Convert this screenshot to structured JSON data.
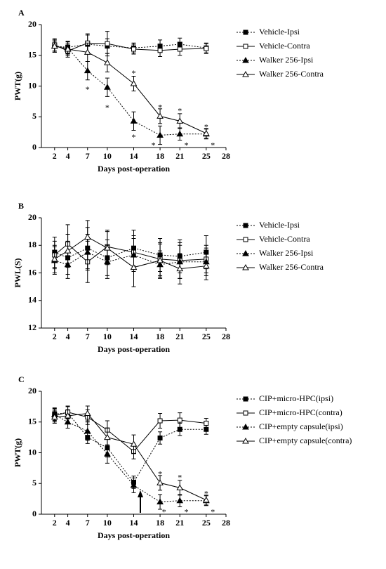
{
  "chart_data": [
    {
      "type": "line",
      "label": "A",
      "ylabel": "PWT(g)",
      "xlabel": "Days post-operation",
      "xlim": [
        0,
        28
      ],
      "xticks": [
        2,
        4,
        7,
        10,
        14,
        18,
        21,
        25,
        28
      ],
      "ylim": [
        0,
        20
      ],
      "yticks": [
        0,
        5,
        10,
        15,
        20
      ],
      "x": [
        2,
        4,
        7,
        10,
        14,
        18,
        21,
        25
      ],
      "series": [
        {
          "name": "Vehicle-Ipsi",
          "color": "#000000",
          "line_style": "dotted",
          "marker": "square",
          "filled": true,
          "values": [
            16.5,
            16.3,
            16.8,
            16.5,
            16.2,
            16.5,
            16.8,
            16.2
          ],
          "errors": [
            0.8,
            1.0,
            1.5,
            1.2,
            0.8,
            1.0,
            1.0,
            0.8
          ]
        },
        {
          "name": "Vehicle-Contra",
          "color": "#000000",
          "line_style": "solid",
          "marker": "square",
          "filled": false,
          "values": [
            16.7,
            15.7,
            17.0,
            16.9,
            16.0,
            15.8,
            16.0,
            16.1
          ],
          "errors": [
            1.0,
            1.0,
            1.5,
            2.0,
            0.8,
            1.0,
            1.0,
            0.8
          ]
        },
        {
          "name": "Walker 256-Ipsi",
          "color": "#000000",
          "line_style": "dotted",
          "marker": "triangle",
          "filled": true,
          "values": [
            16.5,
            16.2,
            12.5,
            9.8,
            4.3,
            2.0,
            2.2,
            2.2
          ],
          "errors": [
            1.0,
            1.0,
            1.5,
            1.5,
            1.5,
            1.5,
            1.0,
            0.8
          ]
        },
        {
          "name": "Walker 256-Contra",
          "color": "#000000",
          "line_style": "solid",
          "marker": "triangle",
          "filled": false,
          "values": [
            16.5,
            16.0,
            15.5,
            13.8,
            10.4,
            5.1,
            4.3,
            2.3
          ],
          "errors": [
            1.0,
            1.0,
            1.5,
            1.5,
            1.2,
            1.2,
            1.2,
            0.8
          ]
        }
      ],
      "annotations": [
        {
          "text": "*",
          "x": 7,
          "y": 9.7
        },
        {
          "text": "*",
          "x": 10,
          "y": 6.7
        },
        {
          "text": "*",
          "x": 14,
          "y": 12.3
        },
        {
          "text": "*",
          "x": 14,
          "y": 1.9
        },
        {
          "text": "*",
          "x": 18,
          "y": 6.8
        },
        {
          "text": "*",
          "x": 17,
          "y": 0.6
        },
        {
          "text": "*",
          "x": 21,
          "y": 6.2
        },
        {
          "text": "*",
          "x": 22,
          "y": 0.6
        },
        {
          "text": "*",
          "x": 25,
          "y": 3.6
        },
        {
          "text": "*",
          "x": 26,
          "y": 0.6
        }
      ]
    },
    {
      "type": "line",
      "label": "B",
      "ylabel": "PWL(S)",
      "xlabel": "Days post-operation",
      "xlim": [
        0,
        28
      ],
      "xticks": [
        2,
        4,
        7,
        10,
        14,
        18,
        21,
        25,
        28
      ],
      "ylim": [
        12,
        20
      ],
      "yticks": [
        12,
        14,
        16,
        18,
        20
      ],
      "x": [
        2,
        4,
        7,
        10,
        14,
        18,
        21,
        25
      ],
      "series": [
        {
          "name": "Vehicle-Ipsi",
          "color": "#000000",
          "line_style": "dotted",
          "marker": "square",
          "filled": true,
          "values": [
            17.5,
            17.1,
            17.8,
            17.1,
            17.8,
            17.3,
            17.2,
            17.5
          ],
          "errors": [
            1.1,
            1.2,
            1.5,
            1.3,
            1.3,
            1.2,
            1.2,
            1.2
          ]
        },
        {
          "name": "Vehicle-Contra",
          "color": "#000000",
          "line_style": "solid",
          "marker": "square",
          "filled": false,
          "values": [
            17.3,
            18.1,
            16.8,
            17.9,
            17.5,
            17.0,
            16.9,
            17.0
          ],
          "errors": [
            1.0,
            1.4,
            1.5,
            1.2,
            1.2,
            1.2,
            1.3,
            1.0
          ]
        },
        {
          "name": "Walker 256-Ipsi",
          "color": "#000000",
          "line_style": "dotted",
          "marker": "triangle",
          "filled": true,
          "values": [
            16.9,
            16.6,
            17.5,
            16.8,
            17.3,
            16.6,
            16.8,
            16.8
          ],
          "errors": [
            1.0,
            1.0,
            1.3,
            1.2,
            1.2,
            1.0,
            1.2,
            1.0
          ]
        },
        {
          "name": "Walker 256-Contra",
          "color": "#000000",
          "line_style": "solid",
          "marker": "triangle",
          "filled": false,
          "values": [
            17.0,
            17.6,
            18.6,
            17.8,
            16.4,
            16.9,
            16.3,
            16.5
          ],
          "errors": [
            1.0,
            1.2,
            1.2,
            1.2,
            1.4,
            1.2,
            1.1,
            1.0
          ]
        }
      ],
      "annotations": []
    },
    {
      "type": "line",
      "label": "C",
      "ylabel": "PWT(g)",
      "xlabel": "Days post-operation",
      "xlim": [
        0,
        28
      ],
      "xticks": [
        2,
        4,
        7,
        10,
        14,
        18,
        21,
        25,
        28
      ],
      "ylim": [
        0,
        20
      ],
      "yticks": [
        0,
        5,
        10,
        15,
        20
      ],
      "x": [
        2,
        4,
        7,
        10,
        14,
        18,
        21,
        25
      ],
      "series": [
        {
          "name": "CIP+micro-HPC(ipsi)",
          "color": "#000000",
          "line_style": "dotted",
          "marker": "square",
          "filled": true,
          "values": [
            16.3,
            16.5,
            12.5,
            10.8,
            5.2,
            12.4,
            13.8,
            13.8
          ],
          "errors": [
            1.0,
            1.0,
            1.0,
            1.5,
            1.0,
            1.0,
            1.0,
            0.8
          ]
        },
        {
          "name": "CIP+micro-HPC(contra)",
          "color": "#000000",
          "line_style": "solid",
          "marker": "square",
          "filled": false,
          "values": [
            16.0,
            16.6,
            15.8,
            13.7,
            10.2,
            15.2,
            15.3,
            14.8
          ],
          "errors": [
            1.0,
            1.0,
            1.2,
            1.5,
            1.2,
            1.2,
            1.2,
            0.8
          ]
        },
        {
          "name": "CIP+empty capsule(ipsi)",
          "color": "#000000",
          "line_style": "dotted",
          "marker": "triangle",
          "filled": true,
          "values": [
            16.2,
            15.0,
            13.5,
            9.8,
            4.7,
            2.0,
            2.2,
            2.2
          ],
          "errors": [
            1.0,
            1.0,
            1.5,
            1.5,
            1.2,
            1.2,
            1.0,
            0.8
          ]
        },
        {
          "name": "CIP+empty capsule(contra)",
          "color": "#000000",
          "line_style": "solid",
          "marker": "triangle",
          "filled": false,
          "values": [
            15.8,
            16.0,
            16.4,
            12.5,
            11.4,
            5.1,
            4.3,
            2.3
          ],
          "errors": [
            1.0,
            1.0,
            1.2,
            1.5,
            1.5,
            1.2,
            1.2,
            0.8
          ]
        }
      ],
      "annotations": [
        {
          "text": "*",
          "x": 18,
          "y": 6.8
        },
        {
          "text": "*",
          "x": 18.6,
          "y": 0.6
        },
        {
          "text": "*",
          "x": 21,
          "y": 6.2
        },
        {
          "text": "*",
          "x": 22,
          "y": 0.6
        },
        {
          "text": "*",
          "x": 25,
          "y": 3.6
        },
        {
          "text": "*",
          "x": 26,
          "y": 0.6
        }
      ]
    }
  ]
}
